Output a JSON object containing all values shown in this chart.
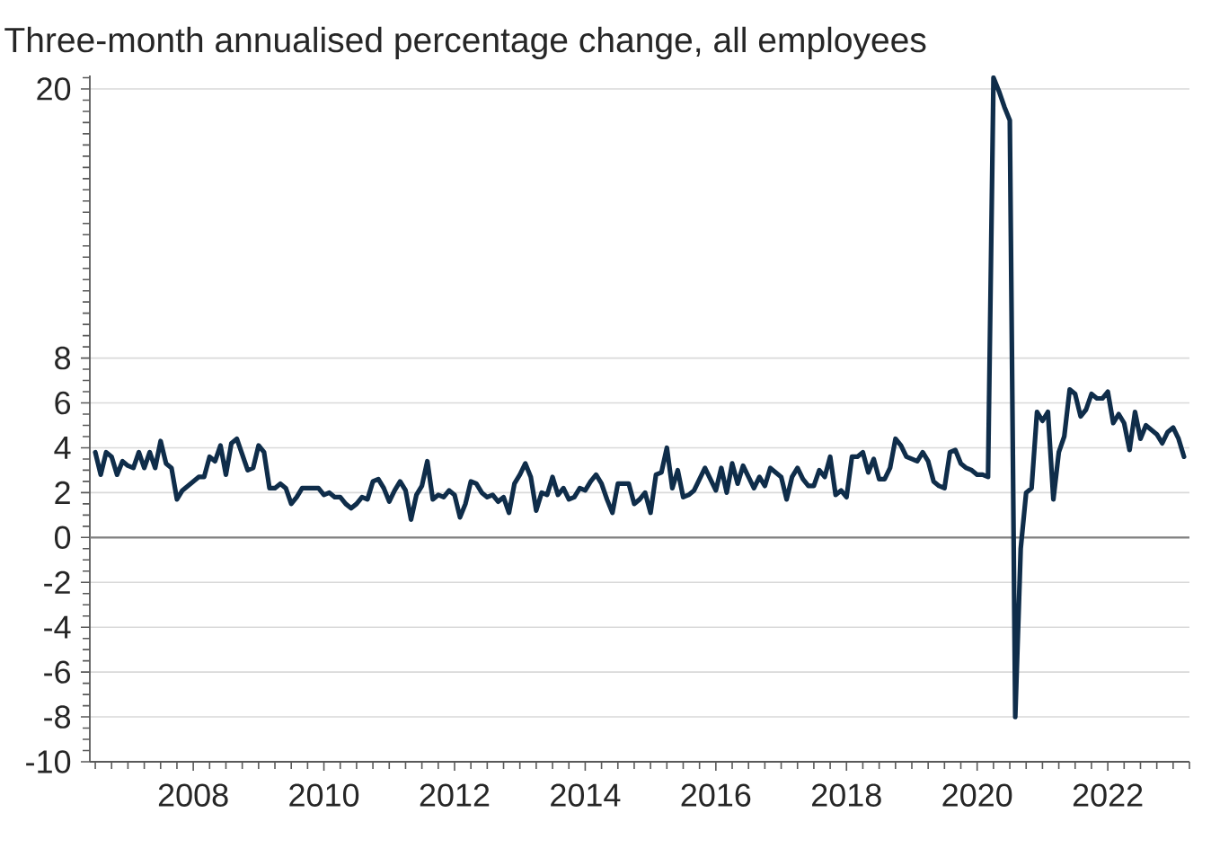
{
  "chart_data": {
    "type": "line",
    "subtitle": "Three-month annualised percentage change, all employees",
    "x": [
      "2006-07",
      "2006-08",
      "2006-09",
      "2006-10",
      "2006-11",
      "2006-12",
      "2007-01",
      "2007-02",
      "2007-03",
      "2007-04",
      "2007-05",
      "2007-06",
      "2007-07",
      "2007-08",
      "2007-09",
      "2007-10",
      "2007-11",
      "2007-12",
      "2008-01",
      "2008-02",
      "2008-03",
      "2008-04",
      "2008-05",
      "2008-06",
      "2008-07",
      "2008-08",
      "2008-09",
      "2008-10",
      "2008-11",
      "2008-12",
      "2009-01",
      "2009-02",
      "2009-03",
      "2009-04",
      "2009-05",
      "2009-06",
      "2009-07",
      "2009-08",
      "2009-09",
      "2009-10",
      "2009-11",
      "2009-12",
      "2010-01",
      "2010-02",
      "2010-03",
      "2010-04",
      "2010-05",
      "2010-06",
      "2010-07",
      "2010-08",
      "2010-09",
      "2010-10",
      "2010-11",
      "2010-12",
      "2011-01",
      "2011-02",
      "2011-03",
      "2011-04",
      "2011-05",
      "2011-06",
      "2011-07",
      "2011-08",
      "2011-09",
      "2011-10",
      "2011-11",
      "2011-12",
      "2012-01",
      "2012-02",
      "2012-03",
      "2012-04",
      "2012-05",
      "2012-06",
      "2012-07",
      "2012-08",
      "2012-09",
      "2012-10",
      "2012-11",
      "2012-12",
      "2013-01",
      "2013-02",
      "2013-03",
      "2013-04",
      "2013-05",
      "2013-06",
      "2013-07",
      "2013-08",
      "2013-09",
      "2013-10",
      "2013-11",
      "2013-12",
      "2014-01",
      "2014-02",
      "2014-03",
      "2014-04",
      "2014-05",
      "2014-06",
      "2014-07",
      "2014-08",
      "2014-09",
      "2014-10",
      "2014-11",
      "2014-12",
      "2015-01",
      "2015-02",
      "2015-03",
      "2015-04",
      "2015-05",
      "2015-06",
      "2015-07",
      "2015-08",
      "2015-09",
      "2015-10",
      "2015-11",
      "2015-12",
      "2016-01",
      "2016-02",
      "2016-03",
      "2016-04",
      "2016-05",
      "2016-06",
      "2016-07",
      "2016-08",
      "2016-09",
      "2016-10",
      "2016-11",
      "2016-12",
      "2017-01",
      "2017-02",
      "2017-03",
      "2017-04",
      "2017-05",
      "2017-06",
      "2017-07",
      "2017-08",
      "2017-09",
      "2017-10",
      "2017-11",
      "2017-12",
      "2018-01",
      "2018-02",
      "2018-03",
      "2018-04",
      "2018-05",
      "2018-06",
      "2018-07",
      "2018-08",
      "2018-09",
      "2018-10",
      "2018-11",
      "2018-12",
      "2019-01",
      "2019-02",
      "2019-03",
      "2019-04",
      "2019-05",
      "2019-06",
      "2019-07",
      "2019-08",
      "2019-09",
      "2019-10",
      "2019-11",
      "2019-12",
      "2020-01",
      "2020-02",
      "2020-03",
      "2020-04",
      "2020-05",
      "2020-06",
      "2020-07",
      "2020-08",
      "2020-09",
      "2020-10",
      "2020-11",
      "2020-12",
      "2021-01",
      "2021-02",
      "2021-03",
      "2021-04",
      "2021-05",
      "2021-06",
      "2021-07",
      "2021-08",
      "2021-09",
      "2021-10",
      "2021-11",
      "2021-12",
      "2022-01",
      "2022-02",
      "2022-03",
      "2022-04",
      "2022-05",
      "2022-06",
      "2022-07",
      "2022-08",
      "2022-09",
      "2022-10",
      "2022-11",
      "2022-12",
      "2023-01",
      "2023-02",
      "2023-03"
    ],
    "values": [
      3.8,
      2.8,
      3.8,
      3.6,
      2.8,
      3.4,
      3.2,
      3.1,
      3.8,
      3.1,
      3.8,
      3.1,
      4.3,
      3.3,
      3.1,
      1.7,
      2.1,
      2.3,
      2.5,
      2.7,
      2.7,
      3.6,
      3.4,
      4.1,
      2.8,
      4.2,
      4.4,
      3.7,
      3.0,
      3.1,
      4.1,
      3.8,
      2.2,
      2.2,
      2.4,
      2.2,
      1.5,
      1.8,
      2.2,
      2.2,
      2.2,
      2.2,
      1.9,
      2.0,
      1.8,
      1.8,
      1.5,
      1.3,
      1.5,
      1.8,
      1.7,
      2.5,
      2.6,
      2.2,
      1.6,
      2.1,
      2.5,
      2.1,
      0.8,
      1.9,
      2.3,
      3.4,
      1.7,
      1.9,
      1.8,
      2.1,
      1.9,
      0.9,
      1.5,
      2.5,
      2.4,
      2.0,
      1.8,
      1.9,
      1.6,
      1.8,
      1.1,
      2.4,
      2.8,
      3.3,
      2.7,
      1.2,
      2.0,
      1.9,
      2.7,
      1.9,
      2.2,
      1.7,
      1.8,
      2.2,
      2.1,
      2.5,
      2.8,
      2.4,
      1.7,
      1.1,
      2.4,
      2.4,
      2.4,
      1.5,
      1.7,
      2.0,
      1.1,
      2.8,
      2.9,
      4.0,
      2.2,
      3.0,
      1.8,
      1.9,
      2.1,
      2.6,
      3.1,
      2.6,
      2.1,
      3.1,
      2.0,
      3.3,
      2.4,
      3.2,
      2.7,
      2.2,
      2.7,
      2.3,
      3.1,
      2.9,
      2.7,
      1.7,
      2.7,
      3.1,
      2.6,
      2.3,
      2.3,
      3.0,
      2.7,
      3.6,
      1.9,
      2.1,
      1.8,
      3.6,
      3.6,
      3.8,
      2.9,
      3.5,
      2.6,
      2.6,
      3.1,
      4.4,
      4.1,
      3.6,
      3.5,
      3.4,
      3.8,
      3.4,
      2.5,
      2.3,
      2.2,
      3.8,
      3.9,
      3.3,
      3.1,
      3.0,
      2.8,
      2.8,
      2.7,
      20.5,
      19.9,
      19.2,
      18.6,
      -8,
      -0.5,
      2.0,
      2.2,
      5.6,
      5.2,
      5.6,
      1.7,
      3.8,
      4.5,
      6.6,
      6.4,
      5.4,
      5.7,
      6.4,
      6.2,
      6.2,
      6.5,
      5.1,
      5.5,
      5.1,
      3.9,
      5.6,
      4.4,
      5.0,
      4.8,
      4.6,
      4.2,
      4.7,
      4.9,
      4.4,
      3.6
    ],
    "color": "#0f2d4a",
    "xlim": [
      "2006-06",
      "2023-04"
    ],
    "ylim": [
      -10,
      20.6
    ],
    "xticks": [
      "2008",
      "2010",
      "2012",
      "2014",
      "2016",
      "2018",
      "2020",
      "2022"
    ],
    "yticks": [
      -10,
      -8,
      -6,
      -4,
      -2,
      0,
      2,
      4,
      6,
      8,
      20
    ],
    "grid": "y",
    "ref_lines": [
      {
        "axis": "y",
        "value": 0,
        "color": "#808080"
      }
    ]
  }
}
